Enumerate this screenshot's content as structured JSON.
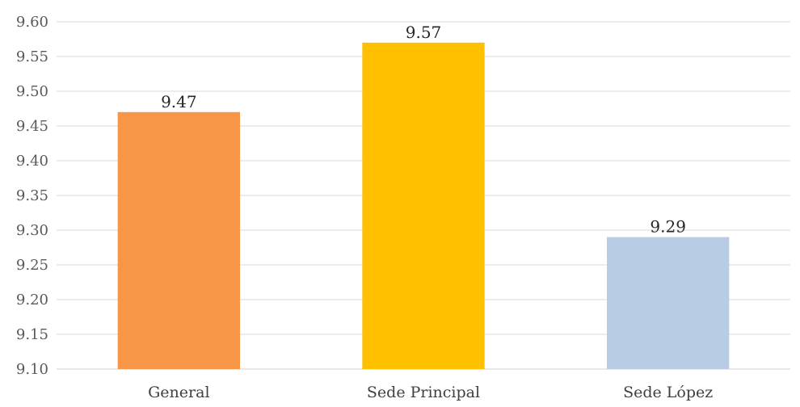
{
  "chart_data": {
    "type": "bar",
    "title": "",
    "xlabel": "",
    "ylabel": "",
    "categories": [
      "General",
      "Sede Principal",
      "Sede López"
    ],
    "values": [
      9.47,
      9.57,
      9.29
    ],
    "data_labels": [
      "9.47",
      "9.57",
      "9.29"
    ],
    "colors": [
      "#f79646",
      "#ffc000",
      "#b8cce4"
    ],
    "ylim": [
      9.1,
      9.6
    ],
    "yticks": [
      "9.10",
      "9.15",
      "9.20",
      "9.25",
      "9.30",
      "9.35",
      "9.40",
      "9.45",
      "9.50",
      "9.55",
      "9.60"
    ],
    "grid": true,
    "legend": "none"
  }
}
